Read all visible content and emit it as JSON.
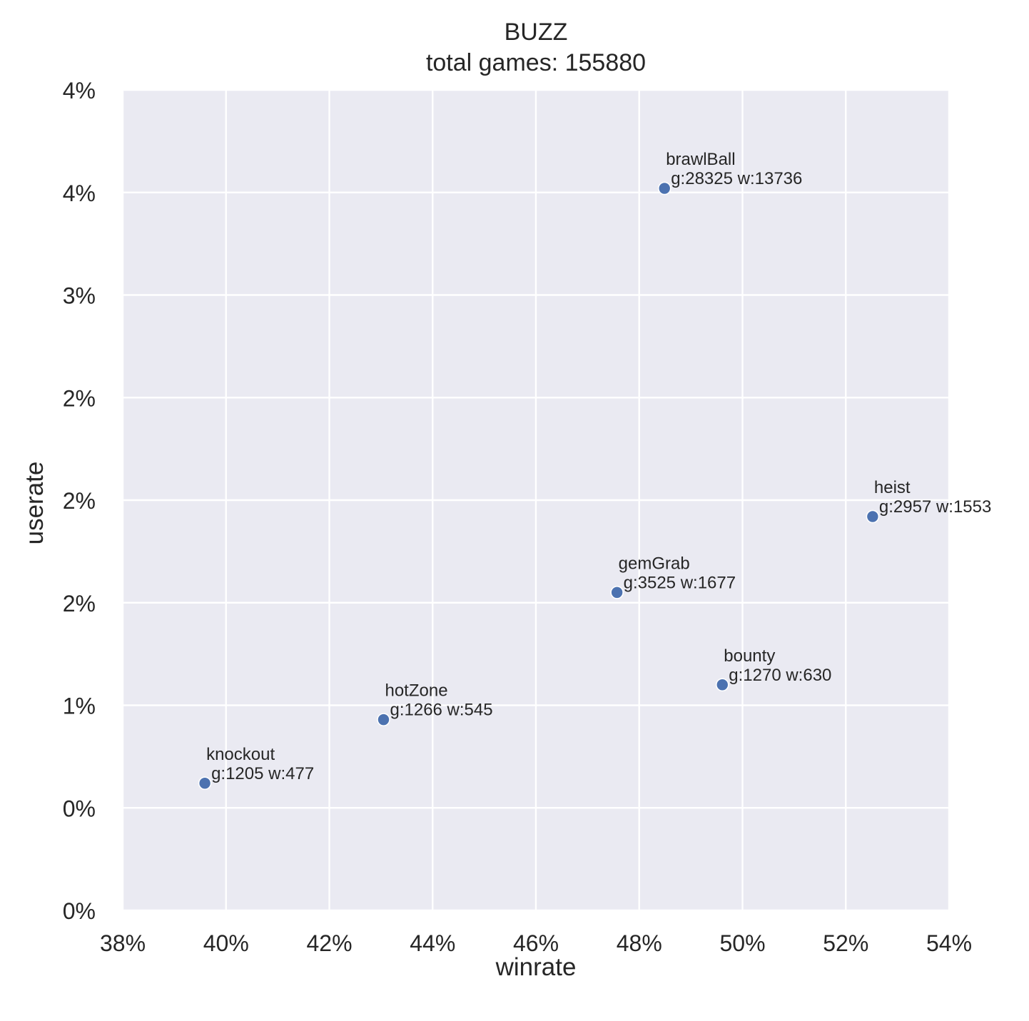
{
  "chart_data": {
    "type": "scatter",
    "title": "BUZZ",
    "subtitle": "total games: 155880",
    "xlabel": "winrate",
    "ylabel": "userate",
    "xlim": [
      0.38,
      0.54
    ],
    "ylim": [
      0.0,
      0.04
    ],
    "x_ticks": [
      0.38,
      0.4,
      0.42,
      0.44,
      0.46,
      0.48,
      0.5,
      0.52,
      0.54
    ],
    "x_tick_labels": [
      "38%",
      "40%",
      "42%",
      "44%",
      "46%",
      "48%",
      "50%",
      "52%",
      "54%"
    ],
    "y_ticks": [
      0.0,
      0.005,
      0.01,
      0.015,
      0.02,
      0.025,
      0.03,
      0.035,
      0.04
    ],
    "y_tick_labels": [
      "0%",
      "0%",
      "1%",
      "2%",
      "2%",
      "2%",
      "3%",
      "4%",
      "4%"
    ],
    "grid": true,
    "points": [
      {
        "name": "brawlBall",
        "stats": "g:28325 w:13736",
        "x": 0.4849,
        "y": 0.0352
      },
      {
        "name": "heist",
        "stats": "g:2957 w:1553",
        "x": 0.5252,
        "y": 0.0192
      },
      {
        "name": "gemGrab",
        "stats": "g:3525 w:1677",
        "x": 0.4757,
        "y": 0.0155
      },
      {
        "name": "bounty",
        "stats": "g:1270 w:630",
        "x": 0.4961,
        "y": 0.011
      },
      {
        "name": "hotZone",
        "stats": "g:1266 w:545",
        "x": 0.4305,
        "y": 0.0093
      },
      {
        "name": "knockout",
        "stats": "g:1205 w:477",
        "x": 0.3959,
        "y": 0.0062
      }
    ],
    "colors": {
      "plot_background": "#eaeaf2",
      "grid": "#ffffff",
      "marker": "#4c72b0"
    }
  }
}
